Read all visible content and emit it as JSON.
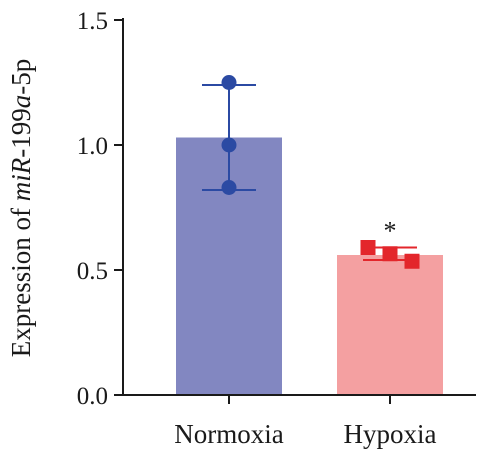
{
  "chart_data": {
    "type": "bar",
    "categories": [
      "Normoxia",
      "Hypoxia"
    ],
    "values": [
      1.03,
      0.56
    ],
    "error_bars": [
      {
        "low": 0.82,
        "high": 1.24
      },
      {
        "low": 0.54,
        "high": 0.59
      }
    ],
    "points": [
      [
        1.25,
        1.0,
        0.83
      ],
      [
        0.59,
        0.565,
        0.535
      ]
    ],
    "bar_colors": [
      "#8287c1",
      "#f4a0a1"
    ],
    "marker_colors": [
      "#2b4aa3",
      "#e3262b"
    ],
    "marker_shapes": [
      "circle",
      "square"
    ],
    "annotations": [
      {
        "category": "Hypoxia",
        "text": "*"
      }
    ],
    "ylabel_parts": [
      {
        "text": "Expression of ",
        "italic": false
      },
      {
        "text": "miR",
        "italic": true
      },
      {
        "text": "-199",
        "italic": false
      },
      {
        "text": "a",
        "italic": true
      },
      {
        "text": "-5p",
        "italic": false
      }
    ],
    "ylim": [
      0,
      1.5
    ],
    "yticks": [
      "0.0",
      "0.5",
      "1.0",
      "1.5"
    ],
    "grid": false
  }
}
